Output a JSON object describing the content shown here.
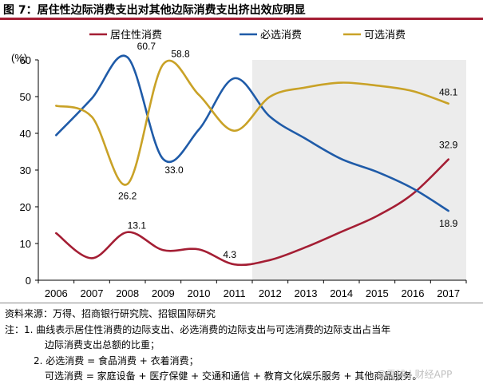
{
  "header": {
    "title": "图 7：居住性边际消费支出对其他边际消费支出挤出效应明显"
  },
  "chart_data": {
    "type": "line",
    "title": "",
    "ylabel": "(%)",
    "xlabel": "",
    "categories": [
      "2006",
      "2007",
      "2008",
      "2009",
      "2010",
      "2011",
      "2012",
      "2013",
      "2014",
      "2015",
      "2016",
      "2017"
    ],
    "ylim": [
      0,
      60
    ],
    "yticks": [
      0,
      10,
      20,
      30,
      40,
      50,
      60
    ],
    "grid": false,
    "legend_position": "top",
    "shaded_range": [
      "2012",
      "2017"
    ],
    "shade_color": "#ececec",
    "series": [
      {
        "name": "居住性消费",
        "color": "#a41e34",
        "x": [
          2006,
          2007,
          2008,
          2009,
          2010,
          2011,
          2012,
          2013,
          2014,
          2015,
          2016,
          2017
        ],
        "values": [
          12.8,
          6.0,
          13.1,
          8.2,
          8.4,
          4.3,
          5.5,
          9.0,
          13.2,
          17.5,
          23.5,
          32.9
        ]
      },
      {
        "name": "必选消费",
        "color": "#1f5ba8",
        "x": [
          2006,
          2007,
          2008,
          2009,
          2010,
          2011,
          2012,
          2013,
          2014,
          2015,
          2016,
          2017
        ],
        "values": [
          39.5,
          49.5,
          60.7,
          33.0,
          41.0,
          55.0,
          44.5,
          38.5,
          33.0,
          29.5,
          25.0,
          18.9
        ]
      },
      {
        "name": "可选消费",
        "color": "#c9a227",
        "x": [
          2006,
          2007,
          2008,
          2009,
          2010,
          2011,
          2012,
          2013,
          2014,
          2015,
          2016,
          2017
        ],
        "values": [
          47.5,
          44.5,
          26.2,
          58.8,
          50.5,
          40.7,
          50.0,
          52.5,
          53.8,
          53.0,
          51.5,
          48.1
        ]
      }
    ],
    "annotations": [
      {
        "text": "60.7",
        "series": 1,
        "index": 2
      },
      {
        "text": "33.0",
        "series": 1,
        "index": 3
      },
      {
        "text": "18.9",
        "series": 1,
        "index": 11
      },
      {
        "text": "58.8",
        "series": 2,
        "index": 3
      },
      {
        "text": "26.2",
        "series": 2,
        "index": 2
      },
      {
        "text": "48.1",
        "series": 2,
        "index": 11
      },
      {
        "text": "13.1",
        "series": 0,
        "index": 2
      },
      {
        "text": "4.3",
        "series": 0,
        "index": 5
      },
      {
        "text": "32.9",
        "series": 0,
        "index": 11
      }
    ]
  },
  "footer": {
    "source": "资料来源：万得、招商银行研究院、招银国际研究",
    "note1a": "注：1. 曲线表示居住性消费的边际支出、必选消费的边际支出与可选消费的边际支出占当年",
    "note1b": "边际消费支出总额的比重；",
    "note2": "2. 必选消费 = 食品消费 + 衣着消费；",
    "note3": "可选消费 = 家庭设备 + 医疗保健 + 交通和通信 + 教育文化娱乐服务 + 其他商品服务。",
    "watermark": "@雪球 | 财经APP"
  }
}
